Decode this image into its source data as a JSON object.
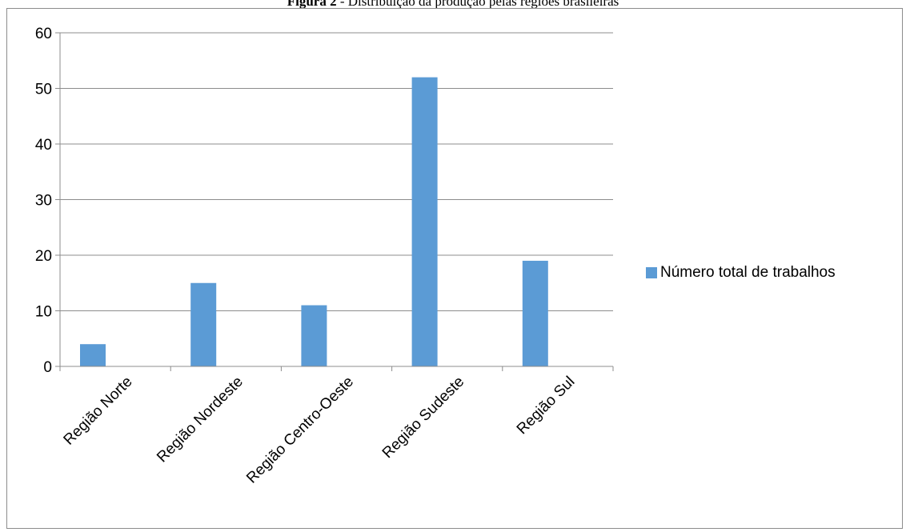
{
  "caption": {
    "label": "Figura 2",
    "text": " - Distribuição da produção pelas regiões brasileiras"
  },
  "chart_data": {
    "type": "bar",
    "categories": [
      "Região Norte",
      "Região Nordeste",
      "Região Centro-Oeste",
      "Região Sudeste",
      "Região Sul"
    ],
    "series": [
      {
        "name": "Número total de trabalhos",
        "values": [
          4,
          15,
          11,
          52,
          19
        ],
        "color": "#5b9bd5"
      }
    ],
    "ylim": [
      0,
      60
    ],
    "yticks": [
      0,
      10,
      20,
      30,
      40,
      50,
      60
    ],
    "grid": true,
    "legend_position": "right"
  }
}
